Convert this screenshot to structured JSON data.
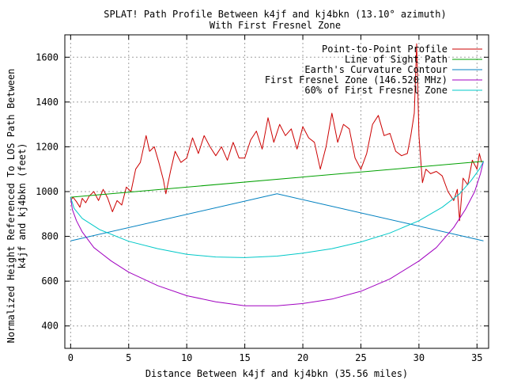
{
  "chart_data": {
    "type": "line",
    "title": "SPLAT! Path Profile Between k4jf and kj4bkn (13.10° azimuth)",
    "subtitle": "With First Fresnel Zone",
    "xlabel": "Distance Between k4jf and kj4bkn (35.56 miles)",
    "ylabel_line1": "Normalized Height Referenced To LOS Path Between",
    "ylabel_line2": "k4jf and kj4bkn (feet)",
    "xlim": [
      -0.5,
      36
    ],
    "ylim": [
      300,
      1700
    ],
    "xticks": [
      0,
      5,
      10,
      15,
      20,
      25,
      30,
      35
    ],
    "yticks": [
      400,
      600,
      800,
      1000,
      1200,
      1400,
      1600
    ],
    "grid": true,
    "legend_position": "top-right",
    "series": [
      {
        "name": "Point-to-Point Profile",
        "color": "#cc0000",
        "x": [
          0,
          0.2,
          0.5,
          0.8,
          1.0,
          1.3,
          1.6,
          2.0,
          2.4,
          2.8,
          3.2,
          3.6,
          4.0,
          4.4,
          4.8,
          5.2,
          5.6,
          6.0,
          6.5,
          6.8,
          7.2,
          7.6,
          8.0,
          8.2,
          8.6,
          9.0,
          9.5,
          10.0,
          10.5,
          11.0,
          11.5,
          12.0,
          12.5,
          13.0,
          13.5,
          14.0,
          14.5,
          15.0,
          15.5,
          16.0,
          16.5,
          17.0,
          17.5,
          18.0,
          18.5,
          19.0,
          19.5,
          20.0,
          20.5,
          21.0,
          21.5,
          22.0,
          22.5,
          23.0,
          23.5,
          24.0,
          24.5,
          25.0,
          25.5,
          26.0,
          26.5,
          27.0,
          27.5,
          28.0,
          28.5,
          29.0,
          29.3,
          29.6,
          29.8,
          30.0,
          30.3,
          30.6,
          31.0,
          31.5,
          32.0,
          32.5,
          33.0,
          33.3,
          33.5,
          33.8,
          34.2,
          34.6,
          35.0,
          35.2,
          35.4
        ],
        "y": [
          960,
          975,
          955,
          930,
          970,
          950,
          980,
          1000,
          960,
          1010,
          970,
          910,
          960,
          940,
          1020,
          1000,
          1100,
          1130,
          1250,
          1180,
          1200,
          1130,
          1050,
          990,
          1090,
          1180,
          1130,
          1150,
          1240,
          1170,
          1250,
          1200,
          1160,
          1200,
          1140,
          1220,
          1150,
          1150,
          1230,
          1270,
          1190,
          1330,
          1220,
          1300,
          1250,
          1280,
          1190,
          1290,
          1240,
          1220,
          1100,
          1200,
          1350,
          1220,
          1300,
          1280,
          1150,
          1100,
          1170,
          1300,
          1340,
          1250,
          1260,
          1180,
          1160,
          1170,
          1250,
          1350,
          1660,
          1250,
          1040,
          1100,
          1080,
          1090,
          1070,
          1000,
          960,
          1010,
          870,
          1060,
          1030,
          1140,
          1100,
          1170,
          1130
        ]
      },
      {
        "name": "Line of Sight Path",
        "color": "#00a000",
        "x": [
          0,
          35.56
        ],
        "y": [
          975,
          1135
        ]
      },
      {
        "name": "Earth's Curvature Contour",
        "color": "#0080c0",
        "x": [
          0,
          17.78,
          35.56
        ],
        "y": [
          780,
          990,
          780
        ]
      },
      {
        "name": "First Fresnel Zone (146.520 MHz)",
        "color": "#a000c0",
        "x": [
          0,
          0.15,
          0.5,
          1,
          2,
          3.5,
          5,
          7.5,
          10,
          12.5,
          15,
          17.78,
          20,
          22.5,
          25,
          27.5,
          30,
          31.5,
          33,
          34,
          34.8,
          35.3,
          35.56
        ],
        "y": [
          975,
          920,
          870,
          820,
          750,
          690,
          640,
          580,
          535,
          508,
          490,
          490,
          500,
          520,
          555,
          610,
          690,
          750,
          840,
          920,
          1000,
          1080,
          1135
        ]
      },
      {
        "name": "60% of First Fresnel Zone",
        "color": "#00c8c8",
        "x": [
          0,
          0.3,
          1,
          2.5,
          5,
          7.5,
          10,
          12.5,
          15,
          17.78,
          20,
          22.5,
          25,
          27.5,
          30,
          32,
          33.5,
          34.5,
          35.2,
          35.56
        ],
        "y": [
          975,
          925,
          880,
          830,
          778,
          745,
          720,
          708,
          705,
          712,
          725,
          745,
          775,
          815,
          870,
          930,
          990,
          1050,
          1100,
          1135
        ]
      }
    ]
  }
}
